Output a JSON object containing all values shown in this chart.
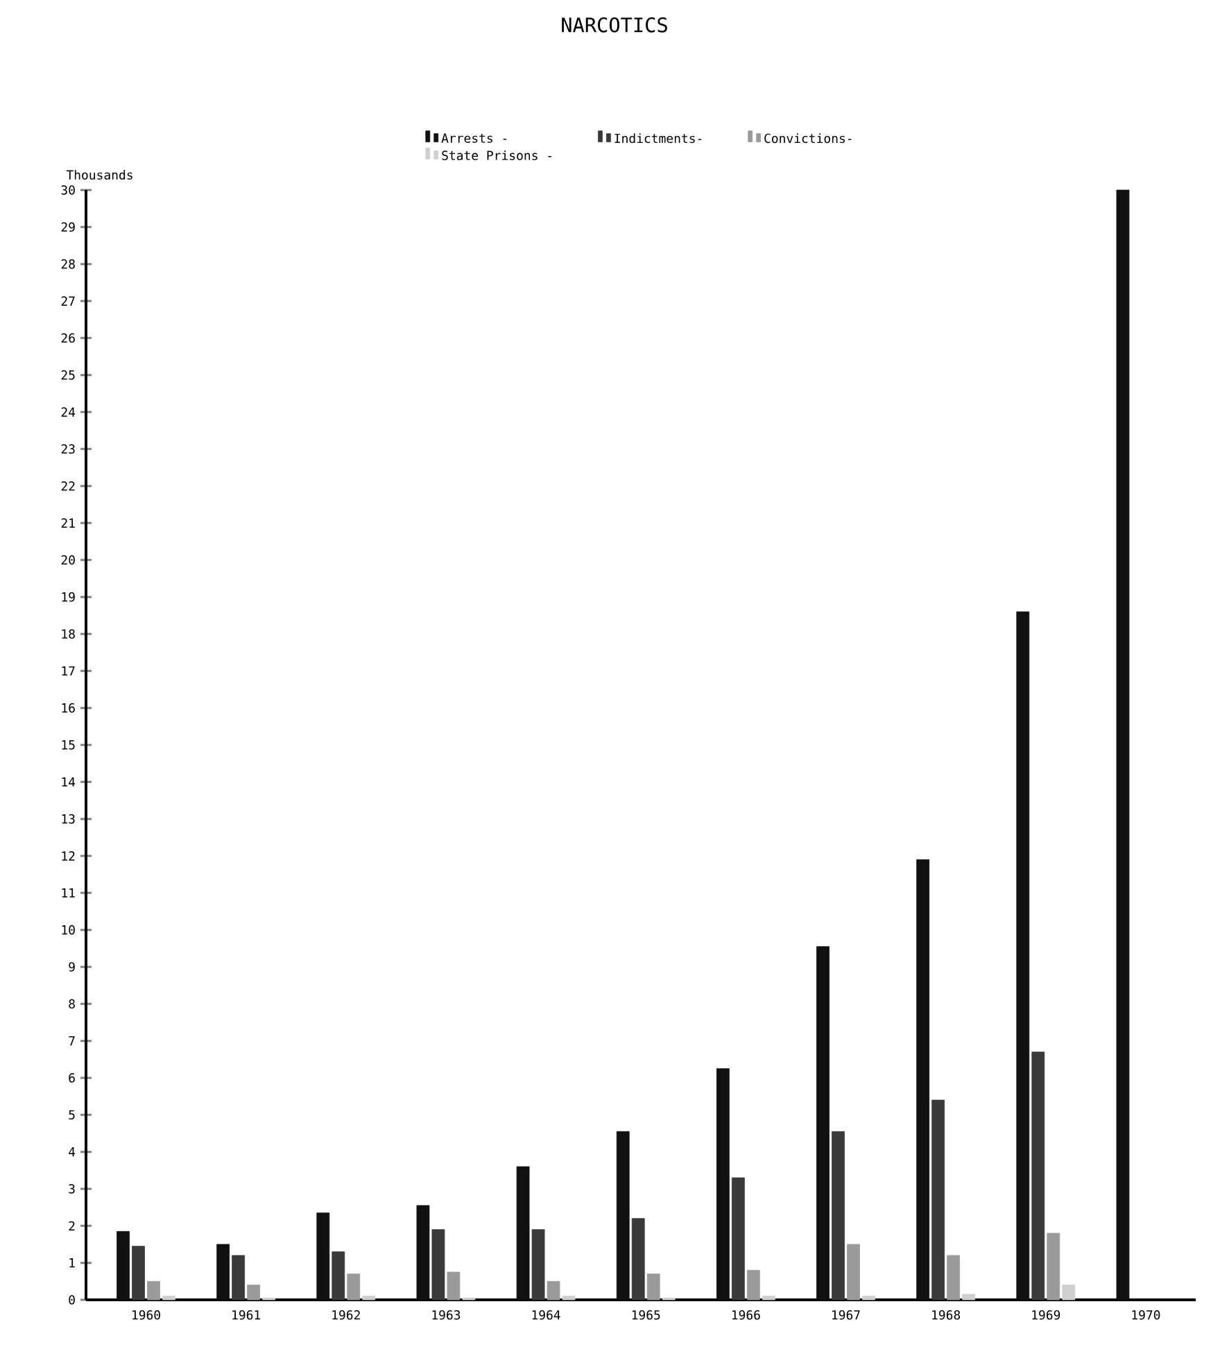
{
  "chart_data": {
    "type": "bar",
    "title": "NARCOTICS",
    "ylabel": "Thousands",
    "categories": [
      "1960",
      "1961",
      "1962",
      "1963",
      "1964",
      "1965",
      "1966",
      "1967",
      "1968",
      "1969",
      "1970"
    ],
    "series": [
      {
        "name": "Arrests -",
        "color": "#111111",
        "values": [
          1.85,
          1.5,
          2.35,
          2.55,
          3.6,
          4.55,
          6.25,
          9.55,
          11.9,
          18.6,
          30
        ]
      },
      {
        "name": "Indictments-",
        "color": "#3a3a3a",
        "values": [
          1.45,
          1.2,
          1.3,
          1.9,
          1.9,
          2.2,
          3.3,
          4.55,
          5.4,
          6.7,
          null
        ]
      },
      {
        "name": "Convictions-",
        "color": "#9a9a9a",
        "values": [
          0.5,
          0.4,
          0.7,
          0.75,
          0.5,
          0.7,
          0.8,
          1.5,
          1.2,
          1.8,
          null
        ]
      },
      {
        "name": "State Prisons -",
        "color": "#cfcfcf",
        "values": [
          0.1,
          0.05,
          0.1,
          0.05,
          0.1,
          0.05,
          0.1,
          0.1,
          0.15,
          0.4,
          null
        ]
      }
    ],
    "ylim": [
      0,
      30
    ],
    "yticks": [
      0,
      1,
      2,
      3,
      4,
      5,
      6,
      7,
      8,
      9,
      10,
      11,
      12,
      13,
      14,
      15,
      16,
      17,
      18,
      19,
      20,
      21,
      22,
      23,
      24,
      25,
      26,
      27,
      28,
      29,
      30
    ],
    "grid": false,
    "legend": "top"
  }
}
